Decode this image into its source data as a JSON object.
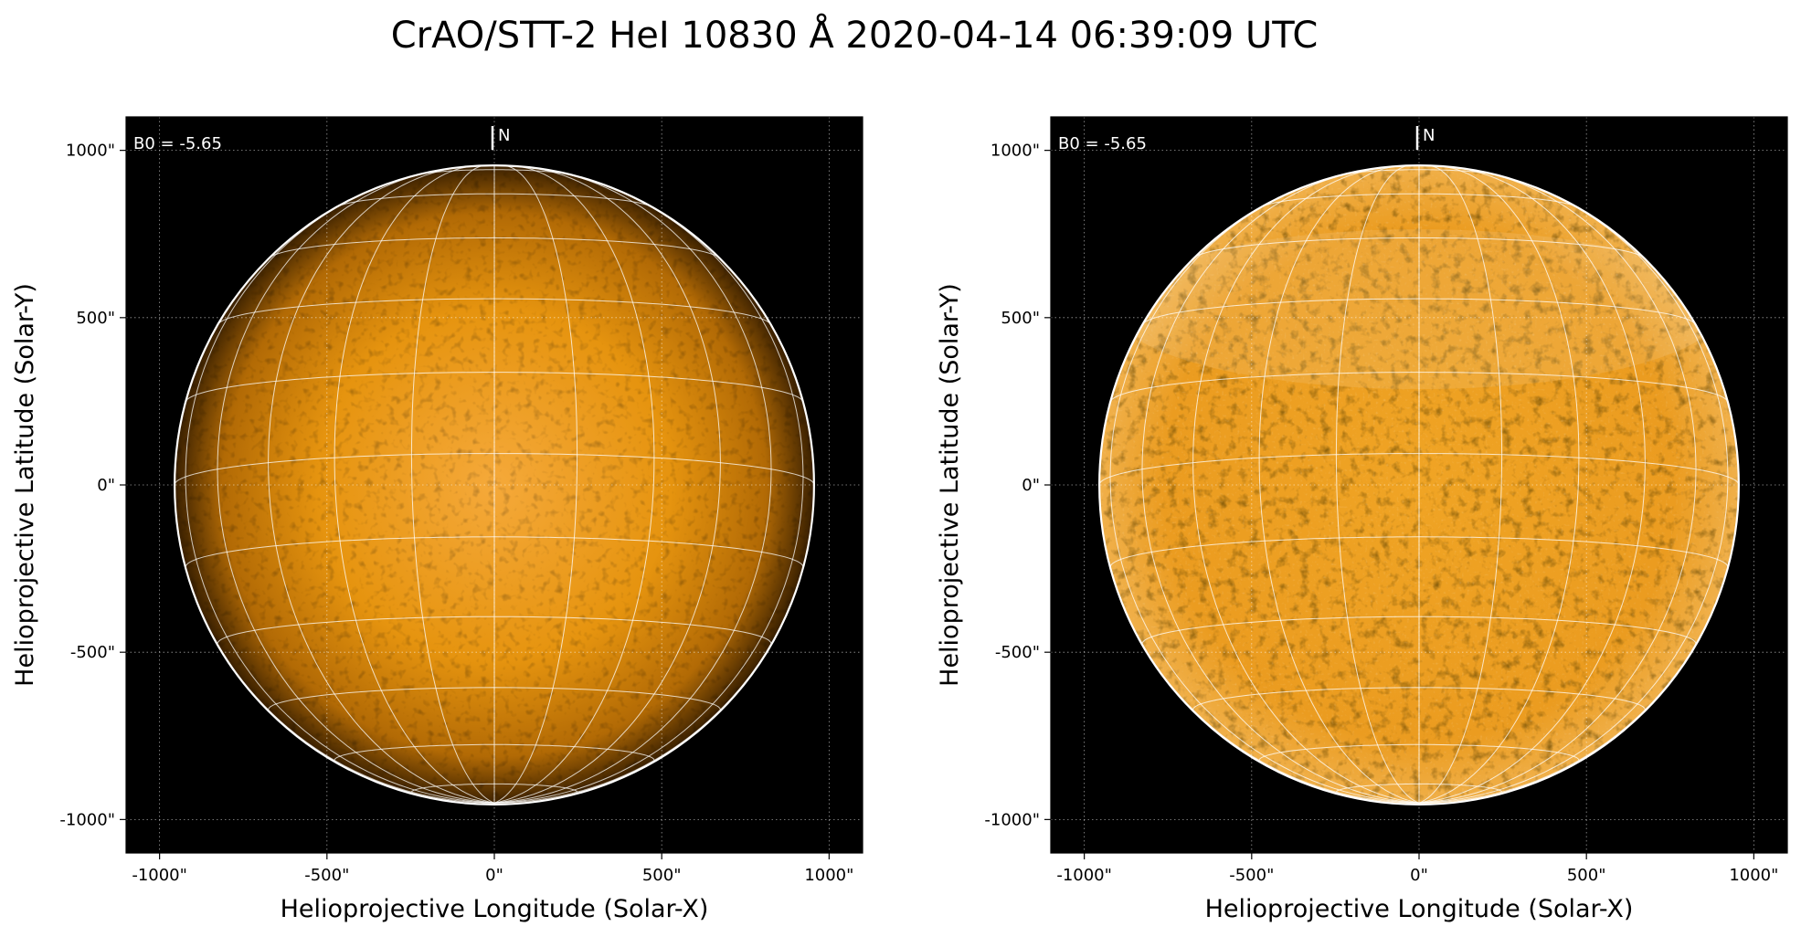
{
  "figure": {
    "title": "CrAO/STT-2 HeI 10830 Å 2020-04-14 06:39:09 UTC"
  },
  "panels": [
    {
      "id": "left",
      "xlabel": "Helioprojective Longitude (Solar-X)",
      "ylabel": "Helioprojective Latitude (Solar-Y)",
      "annotation": "B0 = -5.65",
      "north_label": "N",
      "x_ticks": [
        "-1000\"",
        "-500\"",
        "0\"",
        "500\"",
        "1000\""
      ],
      "y_ticks": [
        "1000\"",
        "500\"",
        "0\"",
        "-500\"",
        "-1000\""
      ],
      "disk_style": "raw-limb-darkened"
    },
    {
      "id": "right",
      "xlabel": "Helioprojective Longitude (Solar-X)",
      "ylabel": "Helioprojective Latitude (Solar-Y)",
      "annotation": "B0 = -5.65",
      "north_label": "N",
      "x_ticks": [
        "-1000\"",
        "-500\"",
        "0\"",
        "500\"",
        "1000\""
      ],
      "y_ticks": [
        "1000\"",
        "500\"",
        "0\"",
        "-500\"",
        "-1000\""
      ],
      "disk_style": "limb-corrected"
    }
  ],
  "axes": {
    "x_range": [
      -1100,
      1100
    ],
    "y_range": [
      -1100,
      1100
    ],
    "tick_values": [
      -1000,
      -500,
      0,
      500,
      1000
    ],
    "solar_radius_arcsec": 955,
    "b0_deg": -5.65
  },
  "colors": {
    "background": "#000000",
    "disk": "#e8950f",
    "grid": "#ffffff"
  }
}
